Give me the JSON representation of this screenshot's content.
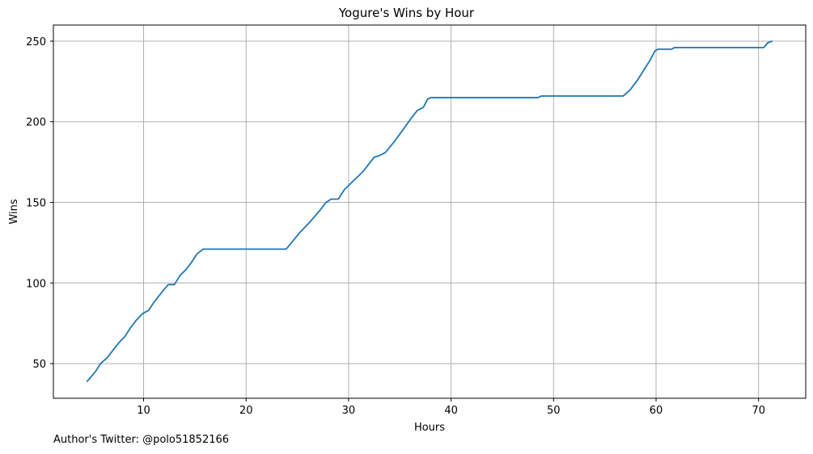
{
  "chart_data": {
    "type": "line",
    "title": "Yogure's Wins by Hour",
    "xlabel": "Hours",
    "ylabel": "Wins",
    "xlim": [
      1.2,
      74.6
    ],
    "ylim": [
      28.5,
      260
    ],
    "xticks": [
      10,
      20,
      30,
      40,
      50,
      60,
      70
    ],
    "yticks": [
      50,
      100,
      150,
      200,
      250
    ],
    "grid": true,
    "series": [
      {
        "color": "#1f77b4",
        "points": [
          [
            4.5,
            39
          ],
          [
            5.3,
            45
          ],
          [
            5.8,
            50
          ],
          [
            6.5,
            54
          ],
          [
            7.1,
            59
          ],
          [
            7.6,
            63
          ],
          [
            8.2,
            67
          ],
          [
            8.7,
            72
          ],
          [
            9.3,
            77
          ],
          [
            9.9,
            81
          ],
          [
            10.5,
            83
          ],
          [
            11.0,
            88
          ],
          [
            11.5,
            92
          ],
          [
            12.0,
            96
          ],
          [
            12.4,
            99
          ],
          [
            13.0,
            99
          ],
          [
            13.6,
            105
          ],
          [
            14.1,
            108
          ],
          [
            14.7,
            113
          ],
          [
            15.2,
            118
          ],
          [
            15.8,
            121
          ],
          [
            16.2,
            121
          ],
          [
            20,
            121
          ],
          [
            23.9,
            121
          ],
          [
            24.3,
            124
          ],
          [
            25.2,
            131
          ],
          [
            26.1,
            137
          ],
          [
            27.2,
            145
          ],
          [
            27.8,
            150
          ],
          [
            28.3,
            152
          ],
          [
            29.0,
            152
          ],
          [
            29.6,
            158
          ],
          [
            30.4,
            163
          ],
          [
            31.4,
            169
          ],
          [
            32.5,
            178
          ],
          [
            33.0,
            179
          ],
          [
            33.6,
            181
          ],
          [
            34.5,
            188
          ],
          [
            35.3,
            195
          ],
          [
            36.2,
            203
          ],
          [
            36.7,
            207
          ],
          [
            37.3,
            209
          ],
          [
            37.7,
            214
          ],
          [
            38.0,
            215
          ],
          [
            40,
            215
          ],
          [
            45,
            215
          ],
          [
            48.5,
            215
          ],
          [
            48.8,
            216
          ],
          [
            50,
            216
          ],
          [
            55,
            216
          ],
          [
            56.8,
            216
          ],
          [
            57.5,
            220
          ],
          [
            58.2,
            226
          ],
          [
            58.8,
            232
          ],
          [
            59.4,
            238
          ],
          [
            59.9,
            244
          ],
          [
            60.2,
            245
          ],
          [
            61.5,
            245
          ],
          [
            61.8,
            246
          ],
          [
            65,
            246
          ],
          [
            70.5,
            246
          ],
          [
            70.9,
            249
          ],
          [
            71.3,
            250
          ]
        ]
      }
    ],
    "footer_text": "Author's Twitter: @polo51852166"
  }
}
